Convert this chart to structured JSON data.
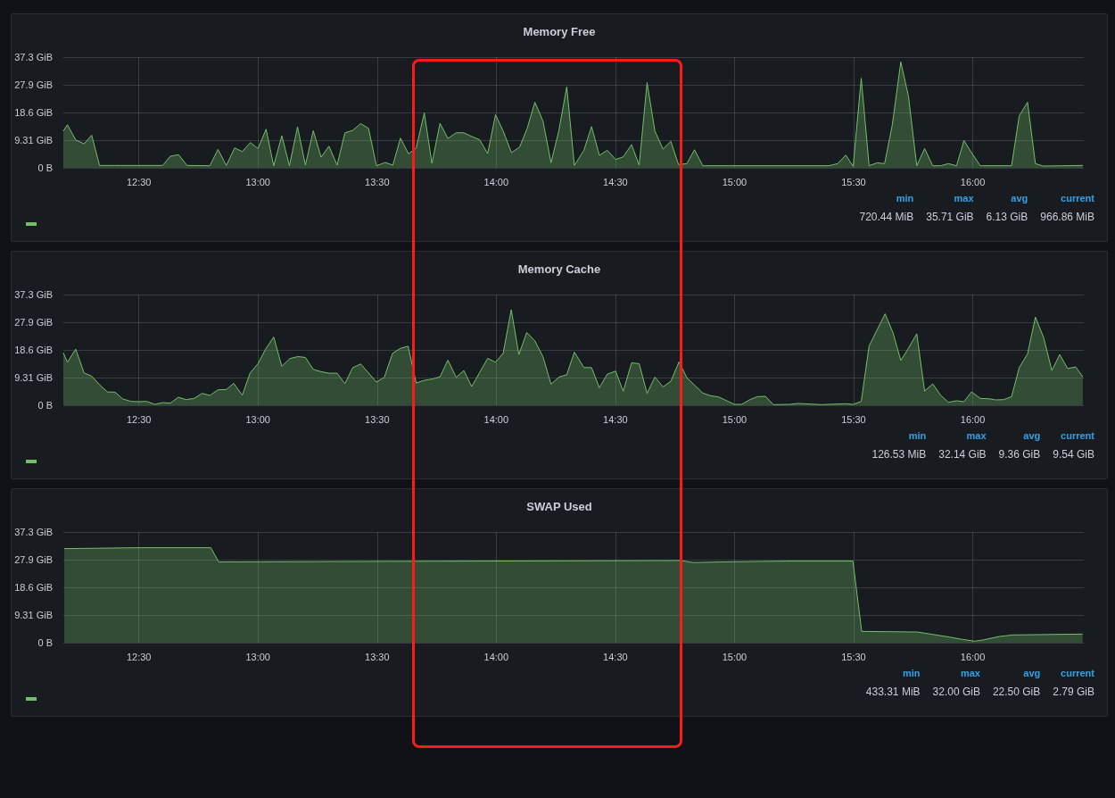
{
  "chart_data": [
    {
      "type": "area",
      "title": "Memory Free",
      "xlim": [
        12.183,
        16.466
      ],
      "ylim": [
        0,
        37.3
      ],
      "xticks": [
        {
          "value": 12.5,
          "label": "12:30"
        },
        {
          "value": 13,
          "label": "13:00"
        },
        {
          "value": 13.5,
          "label": "13:30"
        },
        {
          "value": 14,
          "label": "14:00"
        },
        {
          "value": 14.5,
          "label": "14:30"
        },
        {
          "value": 15,
          "label": "15:00"
        },
        {
          "value": 15.5,
          "label": "15:30"
        },
        {
          "value": 16,
          "label": "16:00"
        }
      ],
      "yticks": [
        {
          "value": 0,
          "label": "0 B"
        },
        {
          "value": 9.31,
          "label": "9.31 GiB"
        },
        {
          "value": 18.6,
          "label": "18.6 GiB"
        },
        {
          "value": 27.9,
          "label": "27.9 GiB"
        },
        {
          "value": 37.3,
          "label": "37.3 GiB"
        }
      ],
      "grid": true,
      "series": [
        {
          "color": "#73bf69",
          "x": [
            12.183,
            12.2,
            12.235,
            12.27,
            12.302,
            12.335,
            12.425,
            12.495,
            12.6,
            12.632,
            12.667,
            12.702,
            12.798,
            12.832,
            12.867,
            12.902,
            12.934,
            12.968,
            13.0,
            13.034,
            13.066,
            13.1,
            13.132,
            13.166,
            13.199,
            13.232,
            13.265,
            13.298,
            13.332,
            13.365,
            13.397,
            13.431,
            13.464,
            13.497,
            13.534,
            13.566,
            13.598,
            13.632,
            13.664,
            13.698,
            13.73,
            13.764,
            13.797,
            13.832,
            13.864,
            13.899,
            13.93,
            13.964,
            13.997,
            14.029,
            14.064,
            14.098,
            14.13,
            14.162,
            14.196,
            14.23,
            14.263,
            14.296,
            14.328,
            14.368,
            14.4,
            14.433,
            14.466,
            14.501,
            14.533,
            14.568,
            14.6,
            14.633,
            14.666,
            14.7,
            14.733,
            14.765,
            14.8,
            14.832,
            14.867,
            15.395,
            15.433,
            15.467,
            15.498,
            15.532,
            15.565,
            15.599,
            15.63,
            15.662,
            15.698,
            15.73,
            15.765,
            15.798,
            15.832,
            15.865,
            15.898,
            15.932,
            15.963,
            15.995,
            16.032,
            16.163,
            16.195,
            16.23,
            16.263,
            16.296,
            16.462
          ],
          "values": [
            12.4,
            14.5,
            9.4,
            8.1,
            11.0,
            0.8,
            0.8,
            0.8,
            0.8,
            3.9,
            4.4,
            0.8,
            0.7,
            6.2,
            0.8,
            6.7,
            5.5,
            8.5,
            6.5,
            13.0,
            0.7,
            10.8,
            0.7,
            13.8,
            0.9,
            12.5,
            3.6,
            7.3,
            0.9,
            11.8,
            12.6,
            14.9,
            13.3,
            0.7,
            1.8,
            0.9,
            10.0,
            4.7,
            6.7,
            18.5,
            1.5,
            15.0,
            9.9,
            11.8,
            11.8,
            10.5,
            9.5,
            4.8,
            17.9,
            12.4,
            5.1,
            7.0,
            13.3,
            22.1,
            15.8,
            1.7,
            12.6,
            27.3,
            0.8,
            5.9,
            13.9,
            4.2,
            5.9,
            2.8,
            3.7,
            7.8,
            0.9,
            28.7,
            12.4,
            6.3,
            8.9,
            1.1,
            1.4,
            6.1,
            0.7,
            0.7,
            1.4,
            4.3,
            0.5,
            30.2,
            0.7,
            1.7,
            1.4,
            14.3,
            35.7,
            24.2,
            0.7,
            6.5,
            0.7,
            0.7,
            1.4,
            0.7,
            9.2,
            5.1,
            0.7,
            0.7,
            17.5,
            22.1,
            1.4,
            0.6,
            0.8
          ]
        }
      ],
      "annotations": [
        "min",
        "max",
        "avg",
        "current",
        "720.44 MiB",
        "35.71 GiB",
        "6.13 GiB",
        "966.86 MiB"
      ]
    },
    {
      "type": "area",
      "title": "Memory Cache",
      "xlim": [
        12.183,
        16.466
      ],
      "ylim": [
        0,
        37.3
      ],
      "xticks": [
        {
          "value": 12.5,
          "label": "12:30"
        },
        {
          "value": 13,
          "label": "13:00"
        },
        {
          "value": 13.5,
          "label": "13:30"
        },
        {
          "value": 14,
          "label": "14:00"
        },
        {
          "value": 14.5,
          "label": "14:30"
        },
        {
          "value": 15,
          "label": "15:00"
        },
        {
          "value": 15.5,
          "label": "15:30"
        },
        {
          "value": 16,
          "label": "16:00"
        }
      ],
      "yticks": [
        {
          "value": 0,
          "label": "0 B"
        },
        {
          "value": 9.31,
          "label": "9.31 GiB"
        },
        {
          "value": 18.6,
          "label": "18.6 GiB"
        },
        {
          "value": 27.9,
          "label": "27.9 GiB"
        },
        {
          "value": 37.3,
          "label": "37.3 GiB"
        }
      ],
      "grid": true,
      "series": [
        {
          "color": "#73bf69",
          "x": [
            12.183,
            12.2,
            12.235,
            12.27,
            12.302,
            12.335,
            12.368,
            12.4,
            12.433,
            12.467,
            12.498,
            12.533,
            12.567,
            12.6,
            12.632,
            12.665,
            12.698,
            12.732,
            12.765,
            12.798,
            12.832,
            12.867,
            12.898,
            12.934,
            12.967,
            13.0,
            13.034,
            13.066,
            13.1,
            13.133,
            13.167,
            13.199,
            13.232,
            13.265,
            13.298,
            13.332,
            13.365,
            13.397,
            13.431,
            13.464,
            13.497,
            13.53,
            13.565,
            13.598,
            13.63,
            13.664,
            13.698,
            13.73,
            13.764,
            13.797,
            13.832,
            13.864,
            13.897,
            13.93,
            13.964,
            13.997,
            14.029,
            14.063,
            14.095,
            14.128,
            14.162,
            14.196,
            14.23,
            14.263,
            14.296,
            14.328,
            14.368,
            14.4,
            14.433,
            14.466,
            14.501,
            14.533,
            14.568,
            14.6,
            14.633,
            14.666,
            14.7,
            14.733,
            14.767,
            14.8,
            14.867,
            14.9,
            14.933,
            15.0,
            15.03,
            15.065,
            15.097,
            15.13,
            15.163,
            15.232,
            15.267,
            15.365,
            15.465,
            15.498,
            15.532,
            15.565,
            15.632,
            15.665,
            15.698,
            15.73,
            15.765,
            15.798,
            15.832,
            15.865,
            15.898,
            15.932,
            15.963,
            15.995,
            16.032,
            16.065,
            16.097,
            16.13,
            16.163,
            16.195,
            16.23,
            16.263,
            16.298,
            16.332,
            16.365,
            16.398,
            16.432,
            16.462
          ],
          "values": [
            17.7,
            14.5,
            18.9,
            10.9,
            9.8,
            6.9,
            4.5,
            4.4,
            2.1,
            1.3,
            1.2,
            1.3,
            0.3,
            0.9,
            0.7,
            2.7,
            1.9,
            2.3,
            4.0,
            3.3,
            5.2,
            5.3,
            7.4,
            3.4,
            10.9,
            14.0,
            19.2,
            23.0,
            13.1,
            15.7,
            16.4,
            16.1,
            12.1,
            11.3,
            10.8,
            10.8,
            7.3,
            12.6,
            13.9,
            10.9,
            7.8,
            9.4,
            17.5,
            19.2,
            19.9,
            7.5,
            8.4,
            8.8,
            9.6,
            15.2,
            9.4,
            11.7,
            6.3,
            11.0,
            15.8,
            14.5,
            17.5,
            32.2,
            17.1,
            24.5,
            21.7,
            16.4,
            7.1,
            9.5,
            10.3,
            17.9,
            12.7,
            12.7,
            5.9,
            10.5,
            11.5,
            4.7,
            14.3,
            14.0,
            4.0,
            9.5,
            6.2,
            8.1,
            14.6,
            9.3,
            4.1,
            3.2,
            2.8,
            0.3,
            0.3,
            1.9,
            2.9,
            3.0,
            0.2,
            0.3,
            0.6,
            0.2,
            0.5,
            0.3,
            1.3,
            20.0,
            30.8,
            24.5,
            15.1,
            19.2,
            24.1,
            4.8,
            7.2,
            3.4,
            1.0,
            1.5,
            1.2,
            4.5,
            2.3,
            2.2,
            1.8,
            1.9,
            2.9,
            12.7,
            17.3,
            29.7,
            22.7,
            11.7,
            17.1,
            12.4,
            12.9,
            9.6
          ]
        }
      ],
      "annotations": [
        "min",
        "max",
        "avg",
        "current",
        "126.53 MiB",
        "32.14 GiB",
        "9.36 GiB",
        "9.54 GiB"
      ]
    },
    {
      "type": "area",
      "title": "SWAP Used",
      "xlim": [
        12.183,
        16.466
      ],
      "ylim": [
        0,
        37.3
      ],
      "xticks": [
        {
          "value": 12.5,
          "label": "12:30"
        },
        {
          "value": 13,
          "label": "13:00"
        },
        {
          "value": 13.5,
          "label": "13:30"
        },
        {
          "value": 14,
          "label": "14:00"
        },
        {
          "value": 14.5,
          "label": "14:30"
        },
        {
          "value": 15,
          "label": "15:00"
        },
        {
          "value": 15.5,
          "label": "15:30"
        },
        {
          "value": 16,
          "label": "16:00"
        }
      ],
      "yticks": [
        {
          "value": 0,
          "label": "0 B"
        },
        {
          "value": 9.31,
          "label": "9.31 GiB"
        },
        {
          "value": 18.6,
          "label": "18.6 GiB"
        },
        {
          "value": 27.9,
          "label": "27.9 GiB"
        },
        {
          "value": 37.3,
          "label": "37.3 GiB"
        }
      ],
      "grid": true,
      "series": [
        {
          "color": "#73bf69",
          "x": [
            12.187,
            12.508,
            12.802,
            12.835,
            13.542,
            14.771,
            14.827,
            14.939,
            15.218,
            15.497,
            15.534,
            15.768,
            15.902,
            15.95,
            16.008,
            16.042,
            16.112,
            16.168,
            16.461
          ],
          "values": [
            31.7,
            32.0,
            32.0,
            27.2,
            27.4,
            27.7,
            27.0,
            27.2,
            27.5,
            27.5,
            3.8,
            3.6,
            1.9,
            1.2,
            0.5,
            0.9,
            2.1,
            2.6,
            2.9
          ]
        }
      ],
      "annotations": [
        "min",
        "max",
        "avg",
        "current",
        "433.31 MiB",
        "32.00 GiB",
        "22.50 GiB",
        "2.79 GiB"
      ]
    }
  ]
}
